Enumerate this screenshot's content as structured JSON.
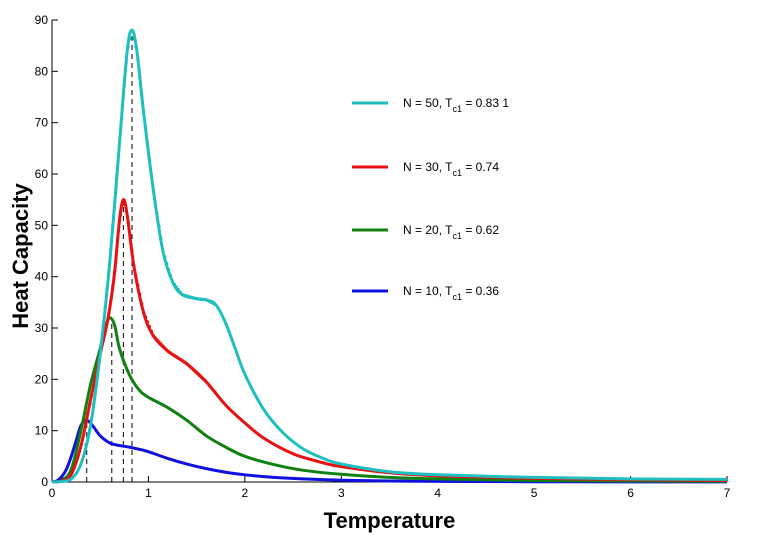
{
  "chart_data": {
    "type": "line",
    "title": "",
    "xlabel": "Temperature",
    "ylabel": "Heat Capacity",
    "xlim": [
      0,
      7
    ],
    "ylim": [
      0,
      90
    ],
    "xticks": [
      0,
      1,
      2,
      3,
      4,
      5,
      6,
      7
    ],
    "yticks": [
      0,
      10,
      20,
      30,
      40,
      50,
      60,
      70,
      80,
      90
    ],
    "grid": false,
    "legend_position": "top-right",
    "series": [
      {
        "name": "N = 50",
        "legend_prefix": "N = 50,  T",
        "legend_sub": "c1",
        "legend_suffix": " = 0.83 1",
        "tc": 0.83,
        "color": "#1fbfbf",
        "marker": "dot",
        "points": [
          [
            0,
            0
          ],
          [
            0.1,
            0.1
          ],
          [
            0.2,
            0.6
          ],
          [
            0.3,
            3.5
          ],
          [
            0.4,
            11
          ],
          [
            0.5,
            25
          ],
          [
            0.6,
            43
          ],
          [
            0.7,
            66
          ],
          [
            0.78,
            84
          ],
          [
            0.83,
            88
          ],
          [
            0.88,
            84
          ],
          [
            0.95,
            72
          ],
          [
            1.05,
            57
          ],
          [
            1.15,
            45
          ],
          [
            1.25,
            39
          ],
          [
            1.35,
            36.5
          ],
          [
            1.5,
            35.7
          ],
          [
            1.6,
            35.5
          ],
          [
            1.7,
            34.5
          ],
          [
            1.8,
            31
          ],
          [
            1.9,
            26
          ],
          [
            2.0,
            21
          ],
          [
            2.2,
            14
          ],
          [
            2.4,
            9.5
          ],
          [
            2.6,
            6.5
          ],
          [
            2.8,
            4.7
          ],
          [
            3.0,
            3.5
          ],
          [
            3.5,
            2.0
          ],
          [
            4.0,
            1.4
          ],
          [
            5.0,
            0.9
          ],
          [
            6.0,
            0.6
          ],
          [
            7.0,
            0.5
          ]
        ]
      },
      {
        "name": "N = 30",
        "legend_prefix": "N = 30,  T",
        "legend_sub": "c1",
        "legend_suffix": " = 0.74",
        "tc": 0.74,
        "color": "#e81010",
        "marker": "dot",
        "points": [
          [
            0,
            0
          ],
          [
            0.1,
            0.2
          ],
          [
            0.2,
            1.5
          ],
          [
            0.3,
            7
          ],
          [
            0.4,
            16
          ],
          [
            0.5,
            25
          ],
          [
            0.55,
            29
          ],
          [
            0.6,
            34
          ],
          [
            0.65,
            41
          ],
          [
            0.7,
            51
          ],
          [
            0.74,
            55
          ],
          [
            0.78,
            52
          ],
          [
            0.85,
            42
          ],
          [
            0.95,
            33
          ],
          [
            1.05,
            28.5
          ],
          [
            1.2,
            25.5
          ],
          [
            1.4,
            23
          ],
          [
            1.6,
            19.5
          ],
          [
            1.8,
            15
          ],
          [
            2.0,
            11.5
          ],
          [
            2.2,
            8.5
          ],
          [
            2.5,
            5.5
          ],
          [
            2.8,
            3.8
          ],
          [
            3.0,
            3.0
          ],
          [
            3.5,
            1.8
          ],
          [
            4.0,
            1.2
          ],
          [
            5.0,
            0.7
          ],
          [
            6.0,
            0.45
          ],
          [
            7.0,
            0.3
          ]
        ]
      },
      {
        "name": "N = 20",
        "legend_prefix": "N = 20,  T",
        "legend_sub": "c1",
        "legend_suffix": " = 0.62",
        "tc": 0.62,
        "color": "#108010",
        "marker": "none",
        "points": [
          [
            0,
            0
          ],
          [
            0.1,
            0.3
          ],
          [
            0.2,
            2.5
          ],
          [
            0.3,
            10
          ],
          [
            0.4,
            19
          ],
          [
            0.5,
            26
          ],
          [
            0.55,
            30
          ],
          [
            0.6,
            32
          ],
          [
            0.65,
            30.5
          ],
          [
            0.7,
            26
          ],
          [
            0.8,
            21
          ],
          [
            0.9,
            18
          ],
          [
            1.0,
            16.5
          ],
          [
            1.2,
            14.5
          ],
          [
            1.4,
            12
          ],
          [
            1.6,
            9
          ],
          [
            1.8,
            6.8
          ],
          [
            2.0,
            5
          ],
          [
            2.3,
            3.4
          ],
          [
            2.6,
            2.3
          ],
          [
            3.0,
            1.5
          ],
          [
            3.5,
            0.9
          ],
          [
            4.0,
            0.6
          ],
          [
            5.0,
            0.3
          ],
          [
            6.0,
            0.2
          ],
          [
            7.0,
            0.15
          ]
        ]
      },
      {
        "name": "N = 10",
        "legend_prefix": "N = 10,  T",
        "legend_sub": "c1",
        "legend_suffix": " = 0.36",
        "tc": 0.36,
        "color": "#1010e0",
        "marker": "none",
        "points": [
          [
            0,
            0
          ],
          [
            0.05,
            0.2
          ],
          [
            0.1,
            1
          ],
          [
            0.15,
            2.5
          ],
          [
            0.2,
            5
          ],
          [
            0.25,
            8
          ],
          [
            0.3,
            11
          ],
          [
            0.36,
            12
          ],
          [
            0.42,
            11
          ],
          [
            0.5,
            9
          ],
          [
            0.6,
            7.6
          ],
          [
            0.7,
            7.1
          ],
          [
            0.8,
            6.8
          ],
          [
            0.9,
            6.4
          ],
          [
            1.0,
            5.9
          ],
          [
            1.2,
            4.6
          ],
          [
            1.4,
            3.5
          ],
          [
            1.6,
            2.6
          ],
          [
            1.8,
            1.9
          ],
          [
            2.0,
            1.4
          ],
          [
            2.3,
            0.9
          ],
          [
            2.6,
            0.6
          ],
          [
            3.0,
            0.35
          ],
          [
            3.5,
            0.2
          ],
          [
            4.0,
            0.12
          ],
          [
            5.0,
            0.05
          ],
          [
            7.0,
            0.02
          ]
        ]
      }
    ]
  }
}
